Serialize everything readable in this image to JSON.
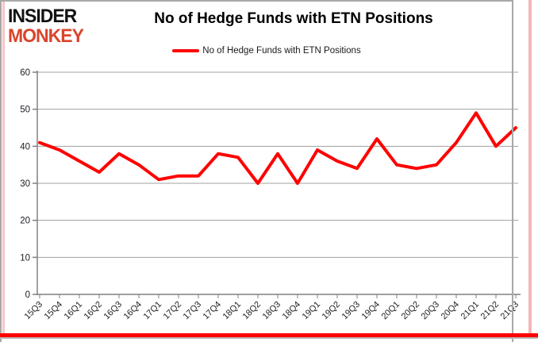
{
  "logo": {
    "line1": "INSIDER",
    "line2": "MONKEY"
  },
  "header": {
    "title": "No of Hedge Funds with ETN Positions"
  },
  "legend": {
    "label": "No of Hedge Funds with ETN Positions"
  },
  "colors": {
    "line": "#ff0000",
    "logo_accent": "#d9452c",
    "grid": "#a0a0a0",
    "axis": "#808080",
    "tick_label": "#1c1c24",
    "border_red": "#ff0000"
  },
  "chart_data": {
    "type": "line",
    "title": "No of Hedge Funds with ETN Positions",
    "categories": [
      "15Q3",
      "15Q4",
      "16Q1",
      "16Q2",
      "16Q3",
      "16Q4",
      "17Q1",
      "17Q2",
      "17Q3",
      "17Q4",
      "18Q1",
      "18Q2",
      "18Q3",
      "18Q4",
      "19Q1",
      "19Q2",
      "19Q3",
      "19Q4",
      "20Q1",
      "20Q2",
      "20Q3",
      "20Q4",
      "21Q1",
      "21Q2",
      "21Q3"
    ],
    "series": [
      {
        "name": "No of Hedge Funds with ETN Positions",
        "values": [
          41,
          39,
          36,
          33,
          38,
          35,
          31,
          32,
          32,
          38,
          37,
          30,
          38,
          30,
          39,
          36,
          34,
          42,
          35,
          34,
          35,
          41,
          49,
          40,
          45
        ]
      }
    ],
    "xlabel": "",
    "ylabel": "",
    "ylim": [
      0,
      60
    ],
    "yticks": [
      0,
      10,
      20,
      30,
      40,
      50,
      60
    ],
    "grid": true,
    "legend_position": "top-center",
    "x_tick_rotation": -45
  }
}
